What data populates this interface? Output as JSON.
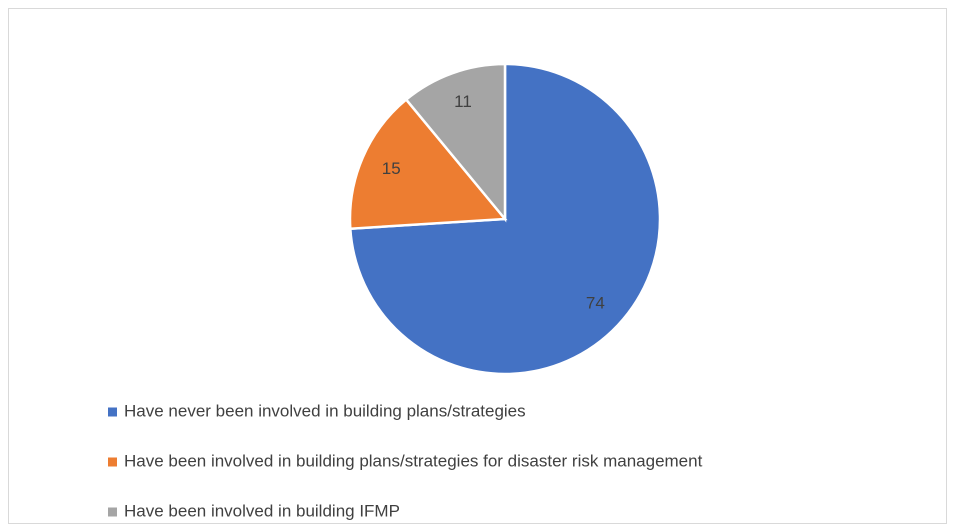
{
  "chart_data": {
    "type": "pie",
    "categories": [
      "Have never been involved in building plans/strategies",
      "Have been involved in building plans/strategies for disaster risk management",
      "Have been involved in building IFMP"
    ],
    "values": [
      74,
      15,
      11
    ],
    "colors": [
      "#4472c4",
      "#ed7d31",
      "#a5a5a5"
    ]
  }
}
